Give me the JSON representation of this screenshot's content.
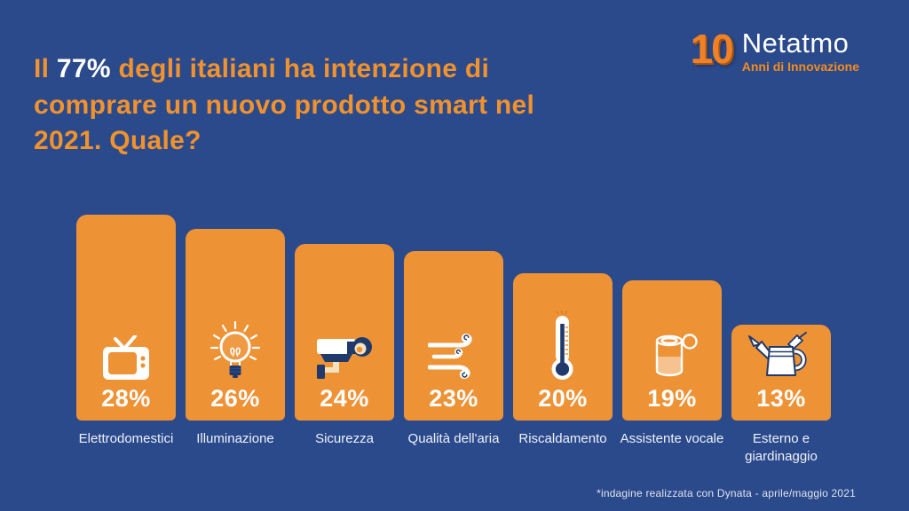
{
  "title": {
    "lead": "Il",
    "highlight": "77%",
    "rest": "degli italiani ha intenzione di\ncomprare un nuovo prodotto smart nel\n2021. Quale?"
  },
  "logo": {
    "number": "10",
    "brand": "Netatmo",
    "tagline": "Anni di Innovazione"
  },
  "footnote": "*indagine realizzata con Dynata - aprile/maggio 2021",
  "colors": {
    "background": "#2b4a8c",
    "bar_orange": "#ee9236",
    "title_orange": "#f0922d",
    "highlight_white": "#ffffff",
    "icon_navy": "#1f3a6b",
    "icon_cream": "#f3e2bd"
  },
  "chart_data": {
    "type": "bar",
    "title": "Il 77% degli italiani ha intenzione di comprare un nuovo prodotto smart nel 2021. Quale?",
    "categories": [
      "Elettrodomestici",
      "Illuminazione",
      "Sicurezza",
      "Qualità dell'aria",
      "Riscaldamento",
      "Assistente vocale",
      "Esterno e giardinaggio"
    ],
    "values": [
      28,
      26,
      24,
      23,
      20,
      19,
      13
    ],
    "value_labels": [
      "28%",
      "26%",
      "24%",
      "23%",
      "20%",
      "19%",
      "13%"
    ],
    "icons": [
      "tv-icon",
      "lightbulb-icon",
      "security-camera-icon",
      "wind-icon",
      "thermometer-icon",
      "smart-speaker-icon",
      "watering-can-icon"
    ],
    "unit": "%",
    "ylim": [
      0,
      28
    ],
    "orientation": "vertical",
    "grid": false,
    "legend": "none",
    "bar_color": "#ee9236"
  }
}
